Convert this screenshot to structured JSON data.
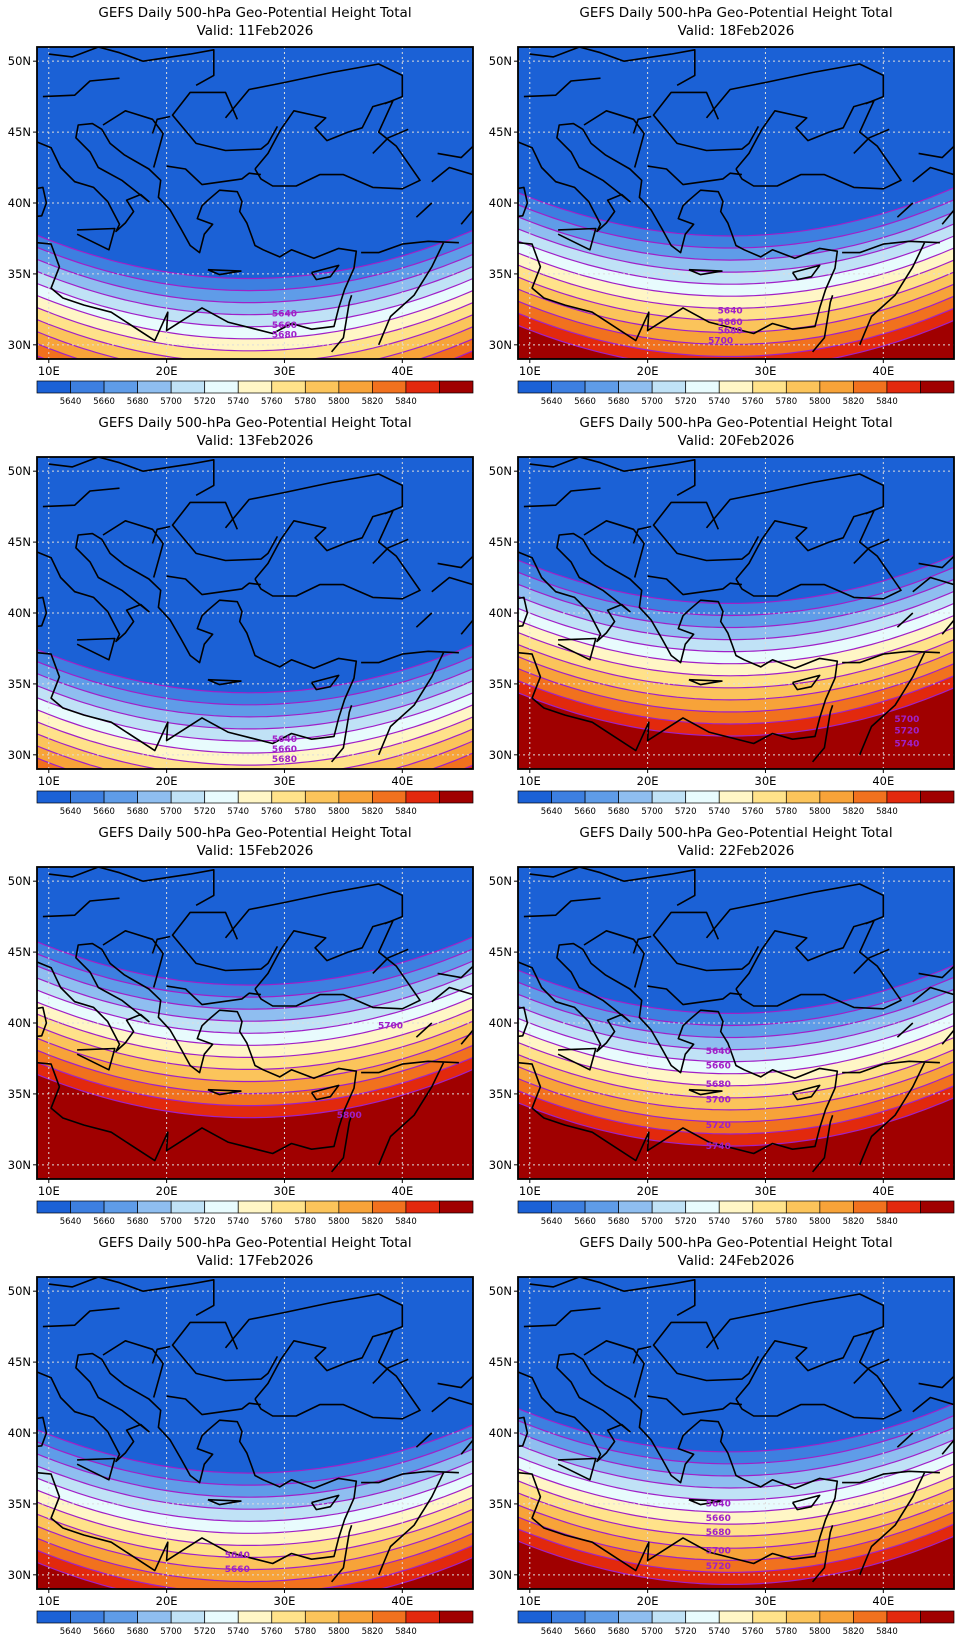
{
  "figure_title": "GEFS Daily 500-hPa Geo-Potential Height Total",
  "colorbar": {
    "labels": [
      "5640",
      "5660",
      "5680",
      "5700",
      "5720",
      "5740",
      "5760",
      "5780",
      "5800",
      "5820",
      "5840"
    ],
    "colors": [
      "#1b61d6",
      "#3d7fe0",
      "#5f9ce8",
      "#8fbef0",
      "#c0e2f6",
      "#e8fbfd",
      "#fff6c6",
      "#ffe28a",
      "#fbc45b",
      "#f7a339",
      "#f1711e",
      "#e2290d",
      "#a00000"
    ]
  },
  "axes": {
    "lat_labels": [
      "50N",
      "45N",
      "40N",
      "35N",
      "30N"
    ],
    "lon_labels": [
      "10E",
      "20E",
      "30E",
      "40E"
    ],
    "lat_range": [
      29,
      51
    ],
    "lon_range": [
      9,
      46
    ]
  },
  "panels": [
    {
      "valid": "Valid: 11Feb2026",
      "shift": 0,
      "labels": [
        [
          "5640",
          30,
          32
        ],
        [
          "5660",
          30,
          31.2
        ],
        [
          "5680",
          30,
          30.5
        ]
      ]
    },
    {
      "valid": "Valid: 18Feb2026",
      "shift": 3,
      "labels": [
        [
          "5640",
          27,
          32.2
        ],
        [
          "5660",
          27,
          31.4
        ],
        [
          "5680",
          27,
          30.8
        ],
        [
          "5700",
          26.2,
          30.1
        ]
      ]
    },
    {
      "valid": "Valid: 13Feb2026",
      "shift": -0.3,
      "labels": [
        [
          "5640",
          30,
          30.9
        ],
        [
          "5660",
          30,
          30.2
        ],
        [
          "5680",
          30,
          29.5
        ]
      ]
    },
    {
      "valid": "Valid: 20Feb2026",
      "shift": 6,
      "labels": [
        [
          "5700",
          42,
          32.3
        ],
        [
          "5720",
          42,
          31.5
        ],
        [
          "5740",
          42,
          30.6
        ]
      ]
    },
    {
      "valid": "Valid: 15Feb2026",
      "shift": 8,
      "labels": [
        [
          "5700",
          39,
          39.6
        ],
        [
          "5800",
          35.5,
          33.3
        ]
      ]
    },
    {
      "valid": "Valid: 22Feb2026",
      "shift": 6,
      "labels": [
        [
          "5640",
          26,
          37.8
        ],
        [
          "5660",
          26,
          36.8
        ],
        [
          "5680",
          26,
          35.5
        ],
        [
          "5700",
          26,
          34.4
        ],
        [
          "5720",
          26,
          32.6
        ],
        [
          "5740",
          26,
          31.1
        ]
      ]
    },
    {
      "valid": "Valid: 17Feb2026",
      "shift": 2.5,
      "labels": [
        [
          "5640",
          26,
          31.2
        ],
        [
          "5660",
          26,
          30.2
        ]
      ]
    },
    {
      "valid": "Valid: 24Feb2026",
      "shift": 4,
      "labels": [
        [
          "5640",
          26,
          34.8
        ],
        [
          "5660",
          26,
          33.8
        ],
        [
          "5680",
          26,
          32.8
        ],
        [
          "5700",
          26,
          31.5
        ],
        [
          "5720",
          26,
          30.4
        ]
      ]
    }
  ]
}
